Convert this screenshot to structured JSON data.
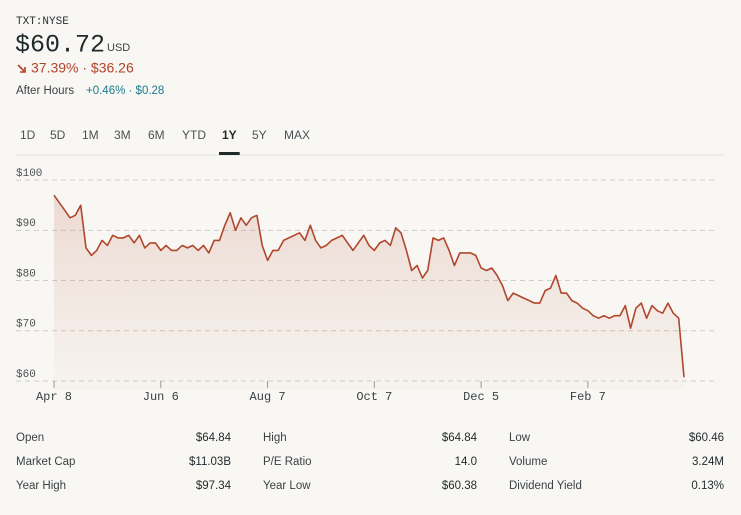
{
  "header": {
    "ticker": "TXT:NYSE",
    "price": "$60.72",
    "currency": "USD",
    "change": "37.39% · $36.26",
    "after_hours_label": "After Hours",
    "after_hours_change": "+0.46% · $0.28"
  },
  "tabs": [
    "1D",
    "5D",
    "1M",
    "3M",
    "6M",
    "YTD",
    "1Y",
    "5Y",
    "MAX"
  ],
  "active_tab": "1Y",
  "chart_data": {
    "type": "line",
    "color": "#b0472d",
    "grid": true,
    "values": [
      97,
      95.5,
      94,
      92.5,
      93,
      95,
      86.5,
      85,
      86,
      88,
      87,
      89,
      88.5,
      88.5,
      89,
      87.5,
      89,
      86.5,
      87.5,
      87.5,
      86,
      87,
      86,
      86,
      87,
      86.5,
      87,
      86,
      87,
      85.5,
      88,
      88,
      91,
      93.5,
      90,
      92.5,
      91,
      92.5,
      93,
      87,
      84,
      86,
      86,
      88,
      88.5,
      89,
      89.5,
      88,
      91,
      88,
      86.5,
      87,
      88,
      88.5,
      89,
      87.5,
      86,
      87.5,
      89,
      87,
      86,
      87.5,
      88,
      87,
      90.5,
      89.5,
      86,
      82,
      83,
      80.5,
      82,
      88.5,
      88,
      88.5,
      86,
      83,
      85.5,
      85.5,
      85.5,
      85,
      82.5,
      82,
      82.5,
      81,
      79,
      76,
      77.5,
      77,
      76.5,
      76,
      75.5,
      75.5,
      78,
      78.5,
      81,
      77.5,
      77.5,
      76,
      75.5,
      74.5,
      74,
      73,
      72.5,
      73,
      72.5,
      73,
      73,
      75,
      70.5,
      74.5,
      75.5,
      72.5,
      75,
      74,
      73.5,
      75.5,
      73.5,
      72.5,
      60.72
    ],
    "xlim": [
      0,
      118
    ],
    "xticks": [
      {
        "value": 0,
        "label": "Apr 8"
      },
      {
        "value": 20,
        "label": "Jun 6"
      },
      {
        "value": 40,
        "label": "Aug 7"
      },
      {
        "value": 60,
        "label": "Oct 7"
      },
      {
        "value": 80,
        "label": "Dec 5"
      },
      {
        "value": 100,
        "label": "Feb 7"
      }
    ],
    "ylim": [
      58.2,
      105
    ],
    "yticks": [
      {
        "value": 100,
        "label": "$100"
      },
      {
        "value": 90,
        "label": "$90"
      },
      {
        "value": 80,
        "label": "$80"
      },
      {
        "value": 70,
        "label": "$70"
      },
      {
        "value": 60,
        "label": "$60"
      }
    ]
  },
  "stats": [
    [
      {
        "label": "Open",
        "value": "$64.84"
      },
      {
        "label": "High",
        "value": "$64.84"
      },
      {
        "label": "Low",
        "value": "$60.46"
      }
    ],
    [
      {
        "label": "Market Cap",
        "value": "$11.03B"
      },
      {
        "label": "P/E Ratio",
        "value": "14.0"
      },
      {
        "label": "Volume",
        "value": "3.24M"
      }
    ],
    [
      {
        "label": "Year High",
        "value": "$97.34"
      },
      {
        "label": "Year Low",
        "value": "$60.38"
      },
      {
        "label": "Dividend Yield",
        "value": "0.13%"
      }
    ]
  ]
}
